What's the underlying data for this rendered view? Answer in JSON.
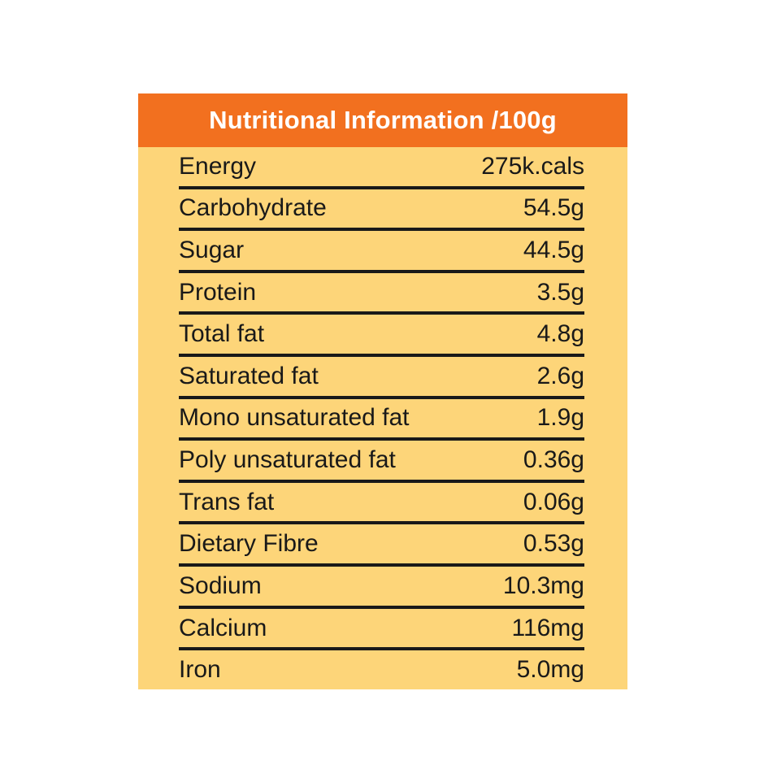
{
  "card": {
    "title": "Nutritional Information /100g",
    "colors": {
      "header_background": "#F2701F",
      "header_text": "#FFFFFF",
      "body_background": "#FDD579",
      "row_text": "#191919",
      "divider": "#191919",
      "page_background": "#FFFFFF"
    },
    "rows": [
      {
        "label": "Energy",
        "value": "275k.cals"
      },
      {
        "label": "Carbohydrate",
        "value": "54.5g"
      },
      {
        "label": "Sugar",
        "value": "44.5g"
      },
      {
        "label": "Protein",
        "value": "3.5g"
      },
      {
        "label": "Total fat",
        "value": "4.8g"
      },
      {
        "label": "Saturated fat",
        "value": "2.6g"
      },
      {
        "label": "Mono unsaturated fat",
        "value": "1.9g"
      },
      {
        "label": "Poly unsaturated fat",
        "value": "0.36g"
      },
      {
        "label": "Trans fat",
        "value": "0.06g"
      },
      {
        "label": "Dietary Fibre",
        "value": "0.53g"
      },
      {
        "label": "Sodium",
        "value": "10.3mg"
      },
      {
        "label": "Calcium",
        "value": "116mg"
      },
      {
        "label": "Iron",
        "value": "5.0mg"
      }
    ]
  }
}
